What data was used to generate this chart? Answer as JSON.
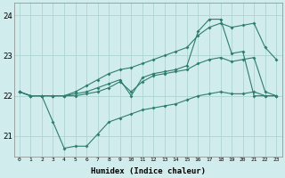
{
  "xlabel": "Humidex (Indice chaleur)",
  "x": [
    0,
    1,
    2,
    3,
    4,
    5,
    6,
    7,
    8,
    9,
    10,
    11,
    12,
    13,
    14,
    15,
    16,
    17,
    18,
    19,
    20,
    21,
    22,
    23
  ],
  "line_top": [
    22.1,
    22.0,
    22.0,
    22.0,
    22.0,
    22.1,
    22.25,
    22.4,
    22.55,
    22.65,
    22.7,
    22.8,
    22.9,
    23.0,
    23.1,
    23.2,
    23.5,
    23.7,
    23.8,
    23.7,
    23.75,
    23.8,
    23.2,
    22.9
  ],
  "line_mid_high": [
    22.1,
    22.0,
    22.0,
    22.0,
    22.0,
    22.05,
    22.1,
    22.2,
    22.3,
    22.4,
    22.0,
    22.45,
    22.55,
    22.6,
    22.65,
    22.75,
    23.6,
    23.9,
    23.9,
    23.05,
    23.1,
    22.0,
    22.0,
    22.0
  ],
  "line_mid_low": [
    22.1,
    22.0,
    22.0,
    22.0,
    22.0,
    22.0,
    22.05,
    22.1,
    22.2,
    22.35,
    22.1,
    22.35,
    22.5,
    22.55,
    22.6,
    22.65,
    22.8,
    22.9,
    22.95,
    22.85,
    22.9,
    22.95,
    22.1,
    22.0
  ],
  "line_min": [
    22.1,
    22.0,
    22.0,
    21.35,
    20.7,
    20.75,
    20.75,
    21.05,
    21.35,
    21.45,
    21.55,
    21.65,
    21.7,
    21.75,
    21.8,
    21.9,
    22.0,
    22.05,
    22.1,
    22.05,
    22.05,
    22.1,
    22.0,
    22.0
  ],
  "color": "#2e7d6e",
  "bg_color": "#d0ecec",
  "grid_color": "#aed4d4",
  "ylim": [
    20.5,
    24.3
  ],
  "yticks": [
    21,
    22,
    23,
    24
  ],
  "xlim": [
    -0.5,
    23.5
  ]
}
